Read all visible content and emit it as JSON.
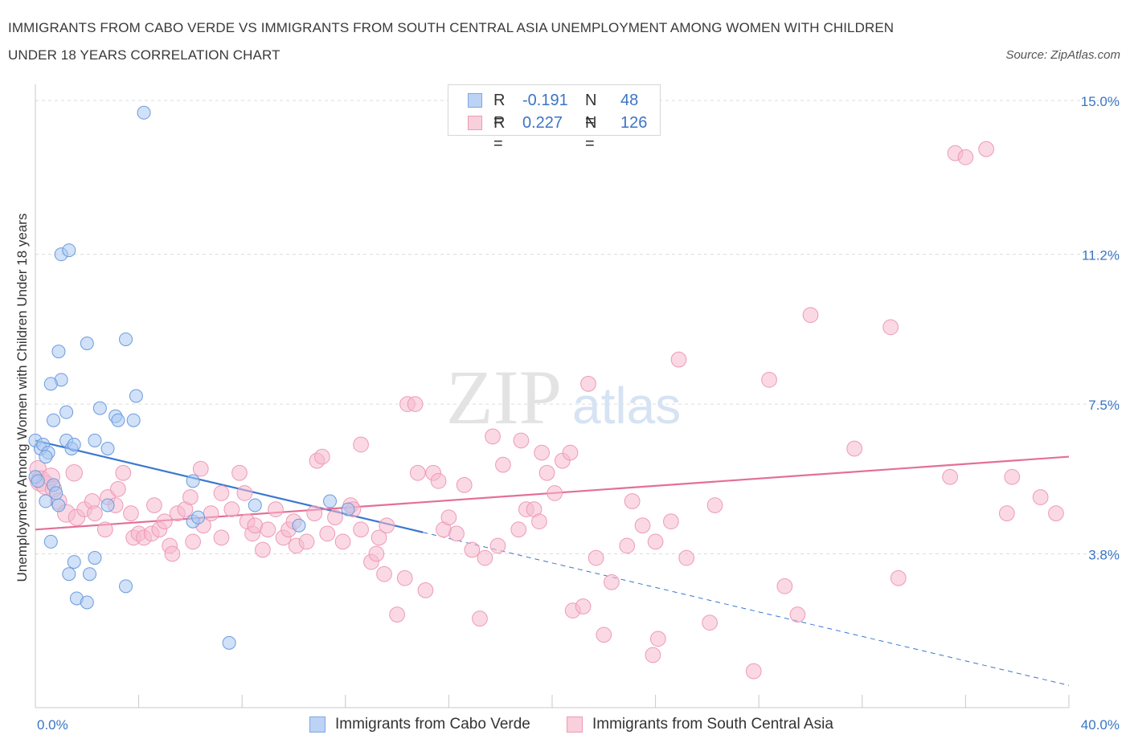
{
  "title": "IMMIGRANTS FROM CABO VERDE VS IMMIGRANTS FROM SOUTH CENTRAL ASIA UNEMPLOYMENT AMONG WOMEN WITH CHILDREN UNDER 18 YEARS CORRELATION CHART",
  "source": "Source: ZipAtlas.com",
  "watermark": {
    "zip": "ZIP",
    "atlas": "atlas"
  },
  "legend_stats": [
    {
      "r_label": "R =",
      "r_value": "-0.191",
      "n_label": "N =",
      "n_value": "48"
    },
    {
      "r_label": "R =",
      "r_value": "0.227",
      "n_label": "N =",
      "n_value": "126"
    }
  ],
  "chart_data": {
    "type": "scatter",
    "title": "IMMIGRANTS FROM CABO VERDE VS IMMIGRANTS FROM SOUTH CENTRAL ASIA UNEMPLOYMENT AMONG WOMEN WITH CHILDREN UNDER 18 YEARS CORRELATION CHART",
    "xlabel": "",
    "ylabel": "Unemployment Among Women with Children Under 18 years",
    "xlim": [
      0,
      40
    ],
    "ylim": [
      0,
      15.4
    ],
    "x_tick_labels": [
      {
        "value": 0,
        "label": "0.0%"
      },
      {
        "value": 40,
        "label": "40.0%"
      }
    ],
    "y_ticks": [
      {
        "value": 3.8,
        "label": "3.8%"
      },
      {
        "value": 7.5,
        "label": "7.5%"
      },
      {
        "value": 11.2,
        "label": "11.2%"
      },
      {
        "value": 15.0,
        "label": "15.0%"
      }
    ],
    "grid": "horizontal dashed",
    "legend_position": "bottom",
    "colors": {
      "cabo_verde": "#a9c8f2",
      "cabo_verde_line": "#3a78d0",
      "south_central_asia": "#f6b9cd",
      "south_central_asia_line": "#e46f98"
    },
    "series": [
      {
        "name": "Immigrants from Cabo Verde",
        "key": "cabo_verde",
        "R": -0.191,
        "N": 48,
        "trend": {
          "x0": 0,
          "y0": 6.6,
          "x_solid_end": 15,
          "x1": 40,
          "y1": 0.55
        },
        "points": [
          [
            0.0,
            6.6,
            1
          ],
          [
            0.2,
            6.4,
            1
          ],
          [
            0.3,
            6.5,
            1
          ],
          [
            0.0,
            5.7,
            1
          ],
          [
            0.4,
            5.1,
            1
          ],
          [
            0.5,
            6.3,
            1
          ],
          [
            0.4,
            6.2,
            1
          ],
          [
            0.6,
            4.1,
            1
          ],
          [
            0.7,
            5.5,
            1
          ],
          [
            0.9,
            5.0,
            1
          ],
          [
            0.8,
            5.3,
            1
          ],
          [
            1.0,
            8.1,
            1
          ],
          [
            0.6,
            8.0,
            1
          ],
          [
            0.7,
            7.1,
            1
          ],
          [
            0.9,
            8.8,
            1
          ],
          [
            1.0,
            11.2,
            1
          ],
          [
            1.3,
            11.3,
            1
          ],
          [
            1.2,
            7.3,
            1
          ],
          [
            1.2,
            6.6,
            1
          ],
          [
            1.4,
            6.4,
            1
          ],
          [
            1.5,
            6.5,
            1
          ],
          [
            1.5,
            3.6,
            1
          ],
          [
            1.3,
            3.3,
            1
          ],
          [
            1.6,
            2.7,
            1
          ],
          [
            2.0,
            9.0,
            1
          ],
          [
            2.0,
            2.6,
            1
          ],
          [
            2.1,
            3.3,
            1
          ],
          [
            2.3,
            3.7,
            1
          ],
          [
            2.3,
            6.6,
            1
          ],
          [
            2.5,
            7.4,
            1
          ],
          [
            2.8,
            6.4,
            1
          ],
          [
            3.1,
            7.2,
            1
          ],
          [
            3.2,
            7.1,
            1
          ],
          [
            2.8,
            5.0,
            1
          ],
          [
            3.5,
            9.1,
            1
          ],
          [
            3.9,
            7.7,
            1
          ],
          [
            3.8,
            7.1,
            1
          ],
          [
            3.5,
            3.0,
            1
          ],
          [
            4.2,
            14.7,
            1
          ],
          [
            6.1,
            5.6,
            1
          ],
          [
            6.1,
            4.6,
            1
          ],
          [
            6.3,
            4.7,
            1
          ],
          [
            7.5,
            1.6,
            1
          ],
          [
            8.5,
            5.0,
            1
          ],
          [
            10.2,
            4.5,
            1
          ],
          [
            11.4,
            5.1,
            1
          ],
          [
            12.1,
            4.9,
            1
          ],
          [
            0.1,
            5.6,
            1
          ]
        ]
      },
      {
        "name": "Immigrants from South Central Asia",
        "key": "south_central_asia",
        "R": 0.227,
        "N": 126,
        "trend": {
          "x0": 0,
          "y0": 4.4,
          "x1": 40,
          "y1": 6.2
        },
        "points": [
          [
            0.1,
            5.9,
            1.2
          ],
          [
            0.2,
            5.6,
            1.5
          ],
          [
            0.4,
            5.5,
            1.4
          ],
          [
            0.6,
            5.7,
            1.3
          ],
          [
            0.7,
            5.4,
            1.2
          ],
          [
            0.9,
            5.1,
            1.2
          ],
          [
            1.2,
            4.8,
            1.3
          ],
          [
            1.6,
            4.7,
            1.2
          ],
          [
            1.5,
            5.8,
            1.2
          ],
          [
            1.9,
            4.9,
            1.1
          ],
          [
            2.2,
            5.1,
            1.1
          ],
          [
            2.3,
            4.8,
            1.1
          ],
          [
            2.7,
            4.4,
            1.1
          ],
          [
            2.8,
            5.2,
            1.1
          ],
          [
            3.1,
            5.0,
            1.1
          ],
          [
            3.2,
            5.4,
            1.1
          ],
          [
            3.4,
            5.8,
            1.1
          ],
          [
            3.7,
            4.8,
            1.1
          ],
          [
            3.8,
            4.2,
            1.1
          ],
          [
            4.0,
            4.3,
            1.1
          ],
          [
            4.2,
            4.2,
            1.1
          ],
          [
            4.5,
            4.3,
            1.1
          ],
          [
            4.6,
            5.0,
            1.1
          ],
          [
            4.8,
            4.4,
            1.1
          ],
          [
            5.0,
            4.6,
            1.1
          ],
          [
            5.2,
            4.0,
            1.1
          ],
          [
            5.3,
            3.8,
            1.1
          ],
          [
            5.5,
            4.8,
            1.1
          ],
          [
            5.8,
            4.9,
            1.1
          ],
          [
            6.0,
            5.2,
            1.1
          ],
          [
            6.1,
            4.1,
            1.1
          ],
          [
            6.4,
            5.9,
            1.1
          ],
          [
            6.5,
            4.5,
            1.1
          ],
          [
            6.8,
            4.8,
            1.1
          ],
          [
            7.2,
            5.3,
            1.1
          ],
          [
            7.2,
            4.2,
            1.1
          ],
          [
            7.6,
            4.9,
            1.1
          ],
          [
            8.1,
            5.3,
            1.1
          ],
          [
            7.9,
            5.8,
            1.1
          ],
          [
            8.2,
            4.6,
            1.1
          ],
          [
            8.4,
            4.3,
            1.1
          ],
          [
            8.5,
            4.5,
            1.1
          ],
          [
            8.8,
            3.9,
            1.1
          ],
          [
            9.0,
            4.4,
            1.1
          ],
          [
            9.3,
            4.9,
            1.1
          ],
          [
            9.6,
            4.2,
            1.1
          ],
          [
            9.8,
            4.4,
            1.1
          ],
          [
            10.0,
            4.6,
            1.1
          ],
          [
            10.1,
            4.0,
            1.1
          ],
          [
            10.5,
            4.1,
            1.1
          ],
          [
            10.8,
            4.8,
            1.1
          ],
          [
            10.9,
            6.1,
            1.1
          ],
          [
            11.1,
            6.2,
            1.1
          ],
          [
            11.3,
            4.3,
            1.1
          ],
          [
            11.6,
            4.7,
            1.1
          ],
          [
            11.9,
            4.1,
            1.1
          ],
          [
            12.2,
            5.0,
            1.1
          ],
          [
            12.3,
            4.9,
            1.1
          ],
          [
            12.6,
            6.5,
            1.1
          ],
          [
            12.6,
            4.4,
            1.1
          ],
          [
            13.0,
            3.6,
            1.1
          ],
          [
            13.2,
            3.8,
            1.1
          ],
          [
            13.3,
            4.2,
            1.1
          ],
          [
            13.5,
            3.3,
            1.1
          ],
          [
            13.6,
            4.5,
            1.1
          ],
          [
            14.0,
            2.3,
            1.1
          ],
          [
            14.3,
            3.2,
            1.1
          ],
          [
            14.4,
            7.5,
            1.1
          ],
          [
            14.7,
            7.5,
            1.1
          ],
          [
            14.8,
            5.8,
            1.1
          ],
          [
            15.1,
            2.9,
            1.1
          ],
          [
            15.4,
            5.8,
            1.1
          ],
          [
            15.6,
            5.6,
            1.1
          ],
          [
            15.8,
            4.4,
            1.1
          ],
          [
            16.0,
            4.7,
            1.1
          ],
          [
            16.3,
            4.3,
            1.1
          ],
          [
            16.6,
            5.5,
            1.1
          ],
          [
            16.9,
            3.9,
            1.1
          ],
          [
            17.2,
            2.2,
            1.1
          ],
          [
            17.4,
            3.7,
            1.1
          ],
          [
            17.7,
            6.7,
            1.1
          ],
          [
            17.9,
            4.0,
            1.1
          ],
          [
            18.1,
            6.0,
            1.1
          ],
          [
            18.7,
            4.4,
            1.1
          ],
          [
            18.8,
            6.6,
            1.1
          ],
          [
            19.0,
            4.9,
            1.1
          ],
          [
            19.3,
            4.9,
            1.1
          ],
          [
            19.5,
            4.6,
            1.1
          ],
          [
            19.6,
            6.3,
            1.1
          ],
          [
            19.8,
            5.8,
            1.1
          ],
          [
            20.1,
            5.3,
            1.1
          ],
          [
            20.4,
            6.1,
            1.1
          ],
          [
            20.8,
            2.4,
            1.1
          ],
          [
            20.7,
            6.3,
            1.1
          ],
          [
            21.2,
            2.5,
            1.1
          ],
          [
            21.4,
            8.0,
            1.1
          ],
          [
            21.7,
            3.7,
            1.1
          ],
          [
            22.0,
            1.8,
            1.1
          ],
          [
            22.3,
            3.1,
            1.1
          ],
          [
            22.9,
            4.0,
            1.1
          ],
          [
            23.1,
            5.1,
            1.1
          ],
          [
            23.5,
            4.5,
            1.1
          ],
          [
            23.9,
            1.3,
            1.1
          ],
          [
            24.0,
            4.1,
            1.1
          ],
          [
            24.1,
            1.7,
            1.1
          ],
          [
            24.6,
            4.6,
            1.1
          ],
          [
            24.9,
            8.6,
            1.1
          ],
          [
            25.2,
            3.7,
            1.1
          ],
          [
            26.1,
            2.1,
            1.1
          ],
          [
            26.3,
            5.0,
            1.1
          ],
          [
            27.8,
            0.9,
            1.1
          ],
          [
            28.4,
            8.1,
            1.1
          ],
          [
            29.0,
            3.0,
            1.1
          ],
          [
            29.5,
            2.3,
            1.1
          ],
          [
            30.0,
            9.7,
            1.1
          ],
          [
            31.7,
            6.4,
            1.1
          ],
          [
            33.1,
            9.4,
            1.1
          ],
          [
            33.4,
            3.2,
            1.1
          ],
          [
            35.4,
            5.7,
            1.1
          ],
          [
            35.6,
            13.7,
            1.1
          ],
          [
            36.0,
            13.6,
            1.1
          ],
          [
            36.8,
            13.8,
            1.1
          ],
          [
            37.6,
            4.8,
            1.1
          ],
          [
            37.8,
            5.7,
            1.1
          ],
          [
            38.9,
            5.2,
            1.1
          ],
          [
            39.5,
            4.8,
            1.1
          ]
        ]
      }
    ]
  }
}
